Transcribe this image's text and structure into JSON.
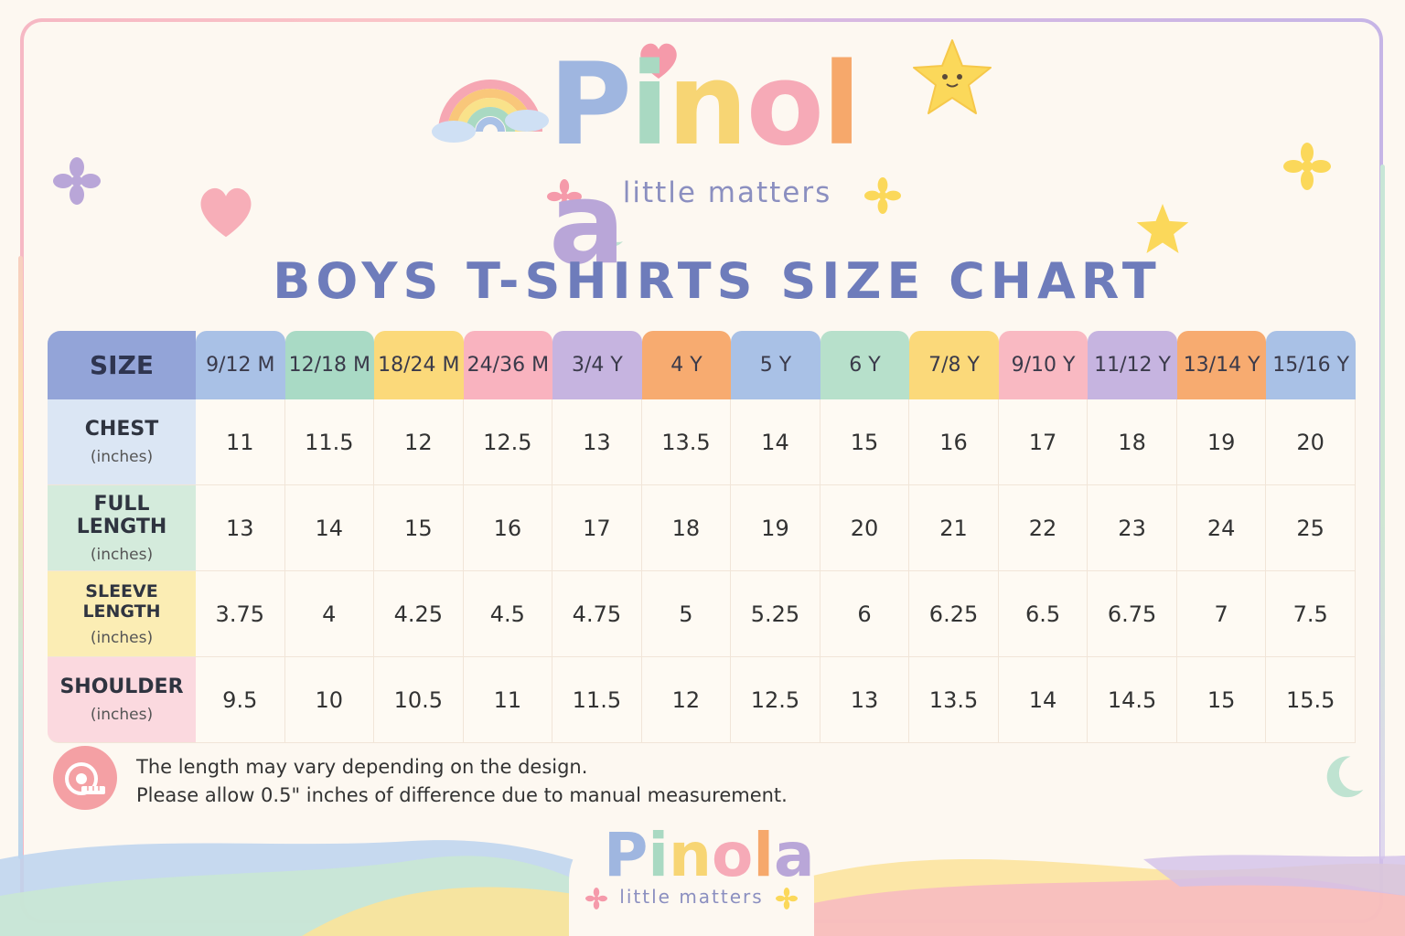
{
  "brand": {
    "letters": [
      {
        "ch": "P",
        "color": "#9fb6e0"
      },
      {
        "ch": "i",
        "color": "#a9d9c2"
      },
      {
        "ch": "n",
        "color": "#f7d574"
      },
      {
        "ch": "o",
        "color": "#f6aab7"
      },
      {
        "ch": "l",
        "color": "#f6a86b"
      },
      {
        "ch": "a",
        "color": "#b9a6d8"
      }
    ],
    "tagline": "little matters"
  },
  "title": "BOYS T-SHIRTS SIZE CHART",
  "table": {
    "size_header": "SIZE",
    "sizes": [
      {
        "label": "9/12 M",
        "color": "#a9c1e6"
      },
      {
        "label": "12/18 M",
        "color": "#a9dac5"
      },
      {
        "label": "18/24 M",
        "color": "#fbd97a"
      },
      {
        "label": "24/36 M",
        "color": "#f9b3bf"
      },
      {
        "label": "3/4 Y",
        "color": "#c6b4e0"
      },
      {
        "label": "4 Y",
        "color": "#f7ab70"
      },
      {
        "label": "5 Y",
        "color": "#a9c1e6"
      },
      {
        "label": "6 Y",
        "color": "#b7e0cb"
      },
      {
        "label": "7/8 Y",
        "color": "#fbd97a"
      },
      {
        "label": "9/10 Y",
        "color": "#f9b9c2"
      },
      {
        "label": "11/12 Y",
        "color": "#c6b4e0"
      },
      {
        "label": "13/14 Y",
        "color": "#f7ab70"
      },
      {
        "label": "15/16 Y",
        "color": "#a9c1e6"
      }
    ],
    "rows": [
      {
        "label": "CHEST",
        "unit": "(inches)",
        "color": "#dbe6f4",
        "values": [
          "11",
          "11.5",
          "12",
          "12.5",
          "13",
          "13.5",
          "14",
          "15",
          "16",
          "17",
          "18",
          "19",
          "20"
        ]
      },
      {
        "label": "FULL LENGTH",
        "unit": "(inches)",
        "color": "#d4ebdc",
        "values": [
          "13",
          "14",
          "15",
          "16",
          "17",
          "18",
          "19",
          "20",
          "21",
          "22",
          "23",
          "24",
          "25"
        ]
      },
      {
        "label": "SLEEVE LENGTH",
        "unit": "(inches)",
        "color": "#fbedb4",
        "values": [
          "3.75",
          "4",
          "4.25",
          "4.5",
          "4.75",
          "5",
          "5.25",
          "6",
          "6.25",
          "6.5",
          "6.75",
          "7",
          "7.5"
        ]
      },
      {
        "label": "SHOULDER",
        "unit": "(inches)",
        "color": "#fbd9df",
        "values": [
          "9.5",
          "10",
          "10.5",
          "11",
          "11.5",
          "12",
          "12.5",
          "13",
          "13.5",
          "14",
          "14.5",
          "15",
          "15.5"
        ]
      }
    ]
  },
  "notes": {
    "line1": "The length may vary depending on the design.",
    "line2": "Please allow 0.5\" inches of difference due to manual measurement."
  },
  "icons": {
    "tape": "measuring-tape-icon",
    "rainbow": "rainbow-icon",
    "heart": "heart-icon",
    "star": "star-icon",
    "flower": "flower-icon",
    "moon": "moon-icon"
  }
}
